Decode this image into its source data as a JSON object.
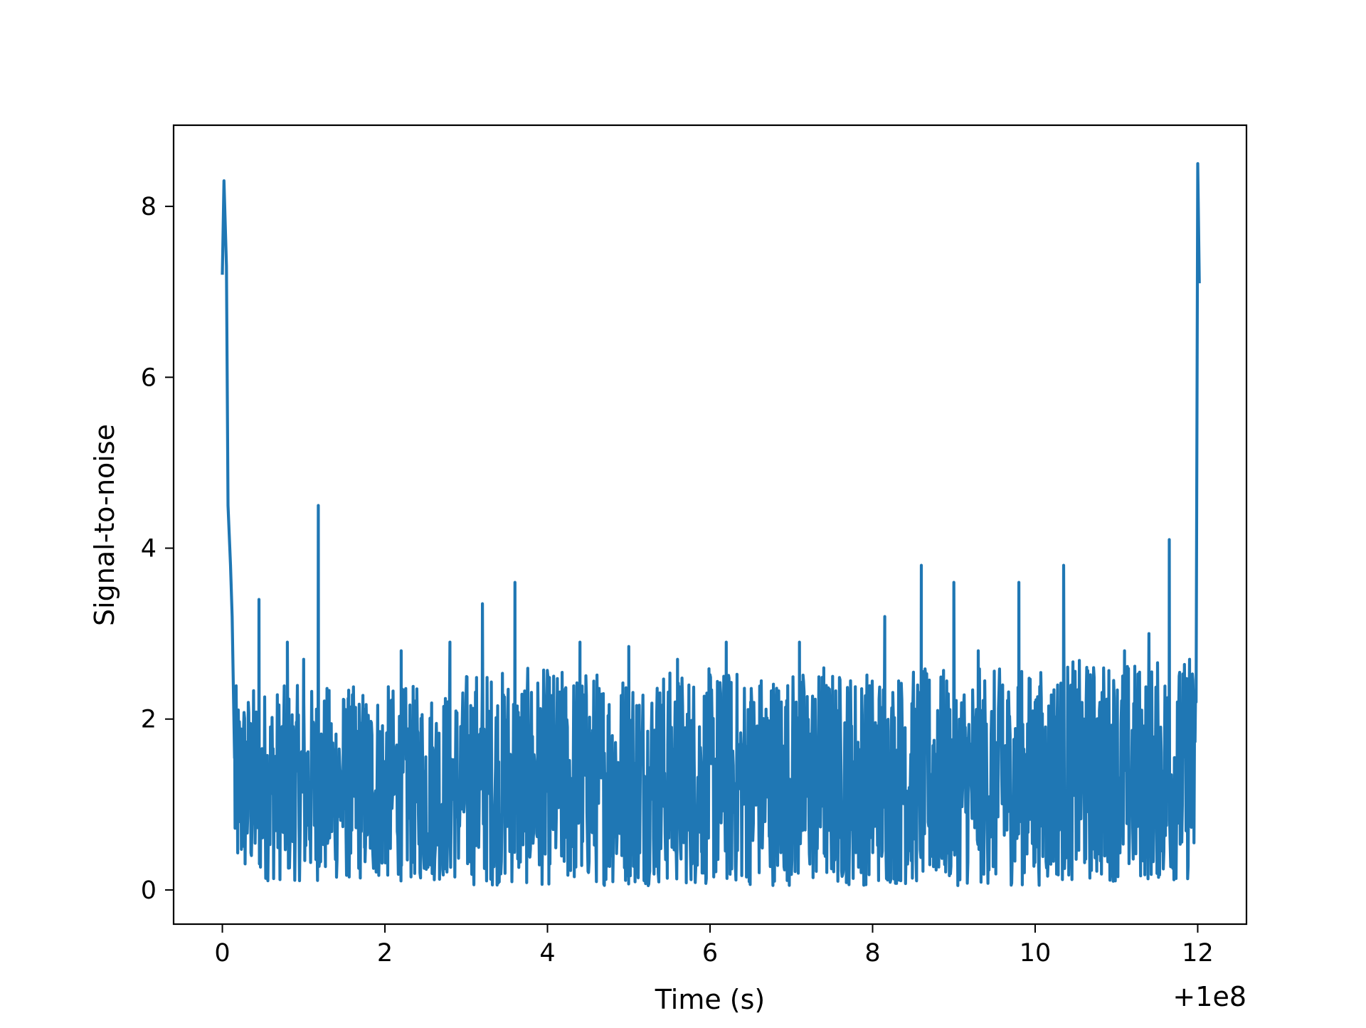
{
  "chart_data": {
    "type": "line",
    "title": "",
    "xlabel": "Time (s)",
    "ylabel": "Signal-to-noise",
    "x_offset_text": "+1e8",
    "xlim": [
      -0.6,
      12.6
    ],
    "ylim": [
      -0.4,
      8.95
    ],
    "xticks": [
      0,
      2,
      4,
      6,
      8,
      10,
      12
    ],
    "xtick_labels": [
      "0",
      "2",
      "4",
      "6",
      "8",
      "10",
      "12"
    ],
    "yticks": [
      0,
      2,
      4,
      6,
      8
    ],
    "ytick_labels": [
      "0",
      "2",
      "4",
      "6",
      "8"
    ],
    "grid": false,
    "legend": null,
    "line_color": "#1f77b4",
    "series": [
      {
        "x": [
          0.0,
          0.02,
          0.05,
          0.07,
          0.1,
          0.12,
          0.15,
          0.2,
          0.3,
          0.45,
          0.6,
          0.8,
          1.0,
          1.18,
          1.35,
          1.55,
          1.75,
          2.0,
          2.2,
          2.5,
          2.8,
          3.1,
          3.2,
          3.4,
          3.6,
          3.85,
          4.1,
          4.4,
          4.7,
          5.0,
          5.3,
          5.6,
          5.9,
          6.2,
          6.5,
          6.8,
          7.1,
          7.4,
          7.7,
          8.0,
          8.15,
          8.4,
          8.6,
          8.8,
          9.0,
          9.3,
          9.6,
          9.8,
          10.0,
          10.35,
          10.6,
          10.9,
          11.1,
          11.4,
          11.65,
          11.75,
          11.9,
          11.98,
          12.0,
          12.02
        ],
        "y": [
          7.2,
          8.3,
          7.3,
          4.5,
          3.8,
          3.2,
          2.2,
          1.8,
          1.5,
          3.4,
          1.4,
          2.9,
          2.7,
          4.5,
          1.4,
          1.2,
          1.6,
          1.3,
          2.8,
          1.1,
          2.9,
          1.0,
          3.35,
          1.2,
          3.6,
          1.4,
          1.9,
          2.9,
          1.6,
          2.85,
          1.8,
          2.7,
          1.4,
          2.9,
          2.2,
          1.7,
          2.9,
          2.6,
          1.6,
          2.0,
          3.2,
          1.9,
          3.8,
          2.1,
          3.6,
          2.8,
          2.4,
          3.6,
          2.2,
          3.8,
          2.0,
          1.8,
          2.8,
          3.0,
          4.1,
          2.2,
          2.7,
          2.2,
          8.5,
          7.1
        ],
        "noise_bands": [
          {
            "x": [
              0.15,
              3.0
            ],
            "min": 0.1,
            "max": 2.4
          },
          {
            "x": [
              3.0,
              10.2
            ],
            "min": 0.05,
            "max": 2.6
          },
          {
            "x": [
              10.2,
              11.98
            ],
            "min": 0.1,
            "max": 2.7
          }
        ]
      }
    ]
  }
}
